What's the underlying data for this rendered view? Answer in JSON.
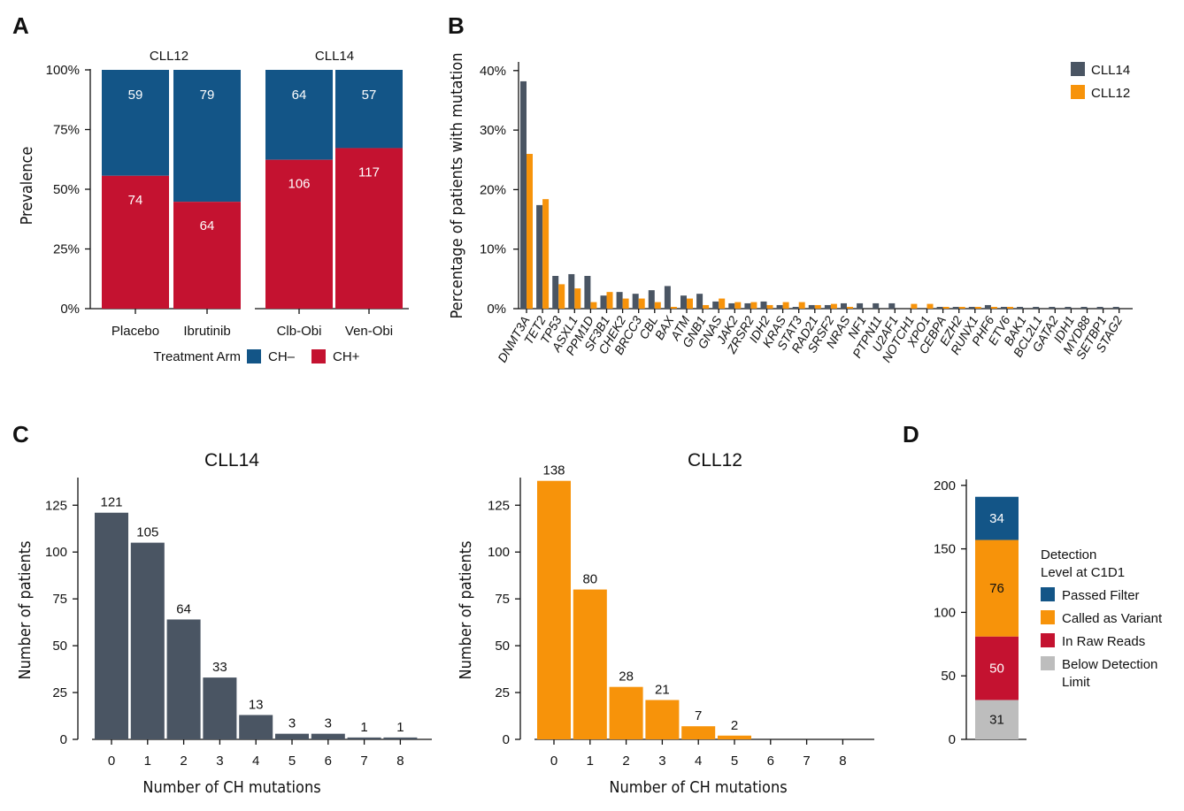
{
  "panels": {
    "A": "A",
    "B": "B",
    "C": "C",
    "D": "D"
  },
  "colors": {
    "ch_neg": "#135587",
    "ch_pos": "#c41230",
    "cll14": "#4a5563",
    "cll12": "#f7930a",
    "passed": "#135587",
    "called": "#f7930a",
    "raw": "#c41230",
    "below": "#bdbdbd"
  },
  "chart_data": [
    {
      "id": "A",
      "type": "bar",
      "stacked": true,
      "normalized": true,
      "ylabel": "Prevalence",
      "xlabel": "Treatment Arm",
      "yticks": [
        "0%",
        "25%",
        "50%",
        "75%",
        "100%"
      ],
      "ylim": [
        0,
        1
      ],
      "groups": [
        {
          "title": "CLL12",
          "categories": [
            "Placebo",
            "Ibrutinib"
          ]
        },
        {
          "title": "CLL14",
          "categories": [
            "Clb-Obi",
            "Ven-Obi"
          ]
        }
      ],
      "categories": [
        "Placebo",
        "Ibrutinib",
        "Clb-Obi",
        "Ven-Obi"
      ],
      "series": [
        {
          "name": "CH+",
          "values": [
            74,
            64,
            106,
            117
          ]
        },
        {
          "name": "CH–",
          "values": [
            59,
            79,
            64,
            57
          ]
        }
      ],
      "legend_title": "Treatment Arm",
      "legend": [
        "CH–",
        "CH+"
      ]
    },
    {
      "id": "B",
      "type": "bar",
      "ylabel": "Percentage of patients with mutation",
      "yticks": [
        "0%",
        "10%",
        "20%",
        "30%",
        "40%"
      ],
      "ylim": [
        0,
        41
      ],
      "categories": [
        "DNMT3A",
        "TET2",
        "TP53",
        "ASXL1",
        "PPM1D",
        "SF3B1",
        "CHEK2",
        "BRCC3",
        "CBL",
        "BAX",
        "ATM",
        "GNB1",
        "GNAS",
        "JAK2",
        "ZRSR2",
        "IDH2",
        "KRAS",
        "STAT3",
        "RAD21",
        "SRSF2",
        "NRAS",
        "NF1",
        "PTPN11",
        "U2AF1",
        "NOTCH1",
        "XPO1",
        "CEBPA",
        "EZH2",
        "RUNX1",
        "PHF6",
        "ETV6",
        "BAK1",
        "BCL2L1",
        "GATA2",
        "IDH1",
        "MYD88",
        "SETBP1",
        "STAG2"
      ],
      "series": [
        {
          "name": "CLL14",
          "values": [
            38.2,
            17.4,
            5.5,
            5.8,
            5.5,
            2.2,
            2.8,
            2.5,
            3.1,
            3.8,
            2.2,
            2.5,
            1.2,
            0.9,
            0.9,
            1.2,
            0.6,
            0.3,
            0.6,
            0.6,
            0.9,
            0.9,
            0.9,
            0.9,
            0.0,
            0.0,
            0.3,
            0.3,
            0.3,
            0.6,
            0.3,
            0.3,
            0.3,
            0.3,
            0.3,
            0.3,
            0.3,
            0.3
          ]
        },
        {
          "name": "CLL12",
          "values": [
            26.0,
            18.4,
            4.1,
            3.4,
            1.1,
            2.8,
            1.7,
            1.7,
            1.1,
            0.3,
            1.7,
            0.6,
            1.7,
            1.1,
            1.1,
            0.6,
            1.1,
            1.1,
            0.6,
            0.8,
            0.3,
            0.0,
            0.0,
            0.0,
            0.8,
            0.8,
            0.3,
            0.3,
            0.3,
            0.3,
            0.3,
            0.0,
            0.0,
            0.0,
            0.0,
            0.0,
            0.0,
            0.0
          ]
        }
      ],
      "legend": [
        "CLL14",
        "CLL12"
      ]
    },
    {
      "id": "C1",
      "type": "bar",
      "title": "CLL14",
      "xlabel": "Number of CH mutations",
      "ylabel": "Number of patients",
      "categories": [
        "0",
        "1",
        "2",
        "3",
        "4",
        "5",
        "6",
        "7",
        "8"
      ],
      "values": [
        121,
        105,
        64,
        33,
        13,
        3,
        3,
        1,
        1
      ],
      "labels": [
        "121",
        "105",
        "64",
        "33",
        "13",
        "3",
        "3",
        "1",
        "1"
      ],
      "ylim": [
        0,
        140
      ],
      "yticks": [
        "0",
        "25",
        "50",
        "75",
        "100",
        "125"
      ]
    },
    {
      "id": "C2",
      "type": "bar",
      "title": "CLL12",
      "xlabel": "Number of CH mutations",
      "ylabel": "Number of patients",
      "categories": [
        "0",
        "1",
        "2",
        "3",
        "4",
        "5",
        "6",
        "7",
        "8"
      ],
      "values": [
        138,
        80,
        28,
        21,
        7,
        2,
        0,
        0,
        0
      ],
      "labels": [
        "138",
        "80",
        "28",
        "21",
        "7",
        "2"
      ],
      "ylim": [
        0,
        140
      ],
      "yticks": [
        "0",
        "25",
        "50",
        "75",
        "100",
        "125"
      ]
    },
    {
      "id": "D",
      "type": "bar",
      "stacked": true,
      "ylim": [
        0,
        200
      ],
      "yticks": [
        "0",
        "50",
        "100",
        "150",
        "200"
      ],
      "series": [
        {
          "name": "Below Detection Limit",
          "value": 31
        },
        {
          "name": "In Raw Reads",
          "value": 50
        },
        {
          "name": "Called as Variant",
          "value": 76
        },
        {
          "name": "Passed Filter",
          "value": 34
        }
      ],
      "legend_title": [
        "Detection",
        "Level at C1D1"
      ],
      "legend": [
        "Passed Filter",
        "Called as Variant",
        "In Raw Reads",
        "Below Detection",
        "Limit"
      ]
    }
  ]
}
